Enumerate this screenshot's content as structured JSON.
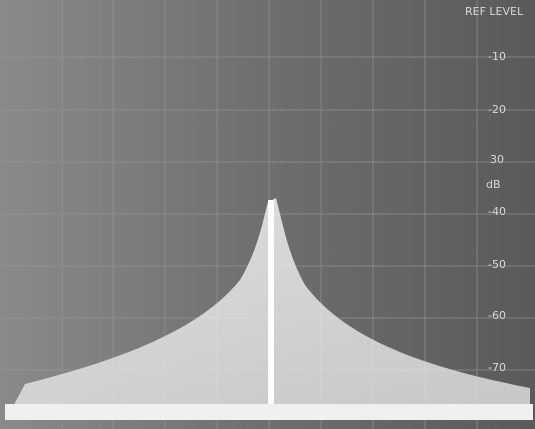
{
  "screen": {
    "labels": [
      "REF LEVEL",
      "-10",
      "-20",
      "30",
      "dB",
      "-40",
      "-50",
      "-60",
      "-70"
    ]
  }
}
